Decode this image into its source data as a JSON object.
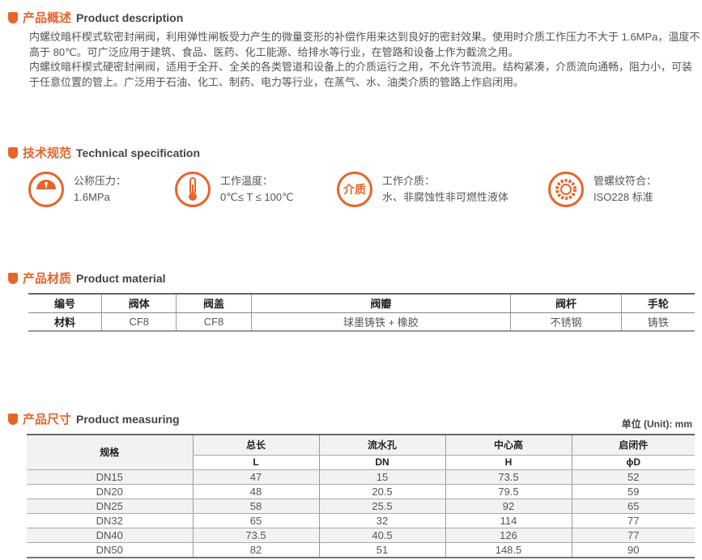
{
  "description": {
    "title_zh": "产品概述",
    "title_en": "Product description",
    "paragraphs": [
      "内螺纹暗杆楔式软密封闸阀，利用弹性闸板受力产生的微量变形的补偿作用来达到良好的密封效果。使用时介质工作压力不大于 1.6MPa，温度不高于 80℃。可广泛应用于建筑、食品、医药、化工能源、给排水等行业，在管路和设备上作为截流之用。",
      "内螺纹暗杆楔式硬密封闸阀，适用于全开、全关的各类管道和设备上的介质运行之用，不允许节流用。结构紧凑，介质流向通畅，阻力小，可装于任意位置的管上。广泛用于石油、化工、制药、电力等行业，在蒸气、水、油类介质的管路上作启闭用。"
    ]
  },
  "specification": {
    "title_zh": "技术规范",
    "title_en": "Technical specification",
    "items": [
      {
        "icon": "pressure-gauge-icon",
        "label": "公称压力：",
        "value": "1.6MPa"
      },
      {
        "icon": "thermometer-icon",
        "label": "工作温度：",
        "value": "0℃≤ T ≤ 100℃"
      },
      {
        "icon": "medium-icon",
        "icon_text": "介质",
        "label": "工作介质：",
        "value": "水、非腐蚀性非可燃性液体"
      },
      {
        "icon": "gear-icon",
        "label": "管螺纹符合：",
        "value": "ISO228 标准"
      }
    ]
  },
  "material": {
    "title_zh": "产品材质",
    "title_en": "Product material",
    "headers": [
      "编号",
      "阀体",
      "阀盖",
      "阀瓣",
      "阀杆",
      "手轮"
    ],
    "row": [
      "材料",
      "CF8",
      "CF8",
      "球墨铸铁 + 橡胶",
      "不锈钢",
      "铸铁"
    ]
  },
  "measuring": {
    "title_zh": "产品尺寸",
    "title_en": "Product measuring",
    "unit": "单位 (Unit): mm",
    "spec_header": "规格",
    "headers": [
      "总长",
      "流水孔",
      "中心高",
      "启闭件"
    ],
    "symbols": [
      "L",
      "DN",
      "H",
      "ϕD"
    ],
    "rows": [
      [
        "DN15",
        "47",
        "15",
        "73.5",
        "52"
      ],
      [
        "DN20",
        "48",
        "20.5",
        "79.5",
        "59"
      ],
      [
        "DN25",
        "58",
        "25.5",
        "92",
        "65"
      ],
      [
        "DN32",
        "65",
        "32",
        "114",
        "77"
      ],
      [
        "DN40",
        "73.5",
        "40.5",
        "126",
        "77"
      ],
      [
        "DN50",
        "82",
        "51",
        "148.5",
        "90"
      ]
    ]
  },
  "colors": {
    "accent": "#e8632a"
  }
}
